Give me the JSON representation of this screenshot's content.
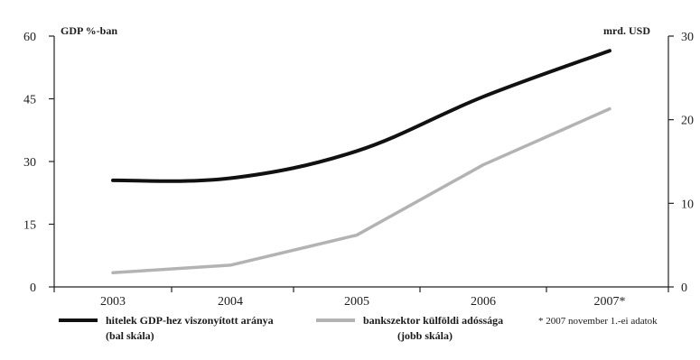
{
  "chart_data": {
    "type": "line",
    "categories": [
      "2003",
      "2004",
      "2005",
      "2006",
      "2007*"
    ],
    "left_axis": {
      "unit_label": "GDP %-ban",
      "ylim": [
        0,
        60
      ],
      "ticks": [
        "0",
        "15",
        "30",
        "45",
        "60"
      ]
    },
    "right_axis": {
      "unit_label": "mrd. USD",
      "ylim": [
        0,
        30
      ],
      "ticks": [
        "0",
        "10",
        "20",
        "30"
      ]
    },
    "series": [
      {
        "name": "hitelek GDP-hez viszonyított aránya (bal skála)",
        "legend_line1": "hitelek GDP-hez viszonyított aránya",
        "legend_line2": "(bal skála)",
        "axis": "left",
        "color": "#111111",
        "values": [
          25.5,
          26,
          32.5,
          45.5,
          56.5
        ]
      },
      {
        "name": "bankszektor külföldi adóssága (jobb skála)",
        "legend_line1": "bankszektor külföldi adóssága",
        "legend_line2": "(jobb skála)",
        "axis": "right",
        "color": "#b3b3b3",
        "values": [
          1.7,
          2.6,
          6.2,
          14.6,
          21.3
        ]
      }
    ],
    "footnote": "* 2007 november 1.-ei adatok",
    "grid": false,
    "legend_position": "bottom"
  }
}
